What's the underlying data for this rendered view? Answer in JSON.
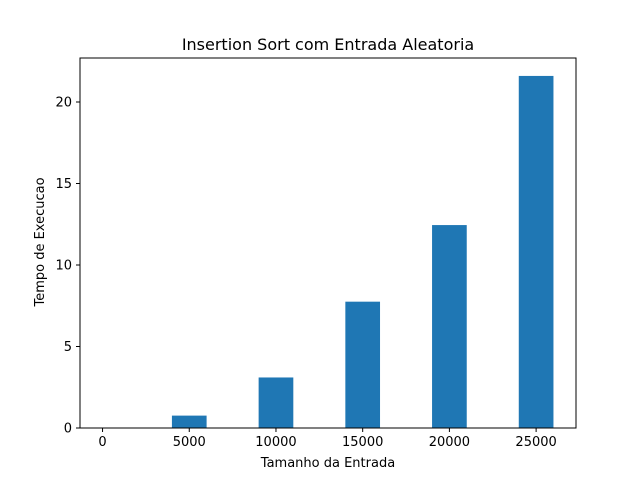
{
  "chart_data": {
    "type": "bar",
    "title": "Insertion Sort com Entrada Aleatoria",
    "xlabel": "Tamanho da Entrada",
    "ylabel": "Tempo de Execucao",
    "x": [
      5000,
      10000,
      15000,
      20000,
      25000
    ],
    "values": [
      0.76,
      3.1,
      7.75,
      12.45,
      21.6
    ],
    "bar_width": 2000,
    "xlim": [
      -1300,
      27300
    ],
    "ylim": [
      0,
      22.7
    ],
    "xticks": [
      0,
      5000,
      10000,
      15000,
      20000,
      25000
    ],
    "xtick_labels": [
      "0",
      "5000",
      "10000",
      "15000",
      "20000",
      "25000"
    ],
    "yticks": [
      0,
      5,
      10,
      15,
      20
    ],
    "ytick_labels": [
      "0",
      "5",
      "10",
      "15",
      "20"
    ],
    "bar_color": "#1f77b4",
    "grid": false,
    "legend": "none"
  }
}
